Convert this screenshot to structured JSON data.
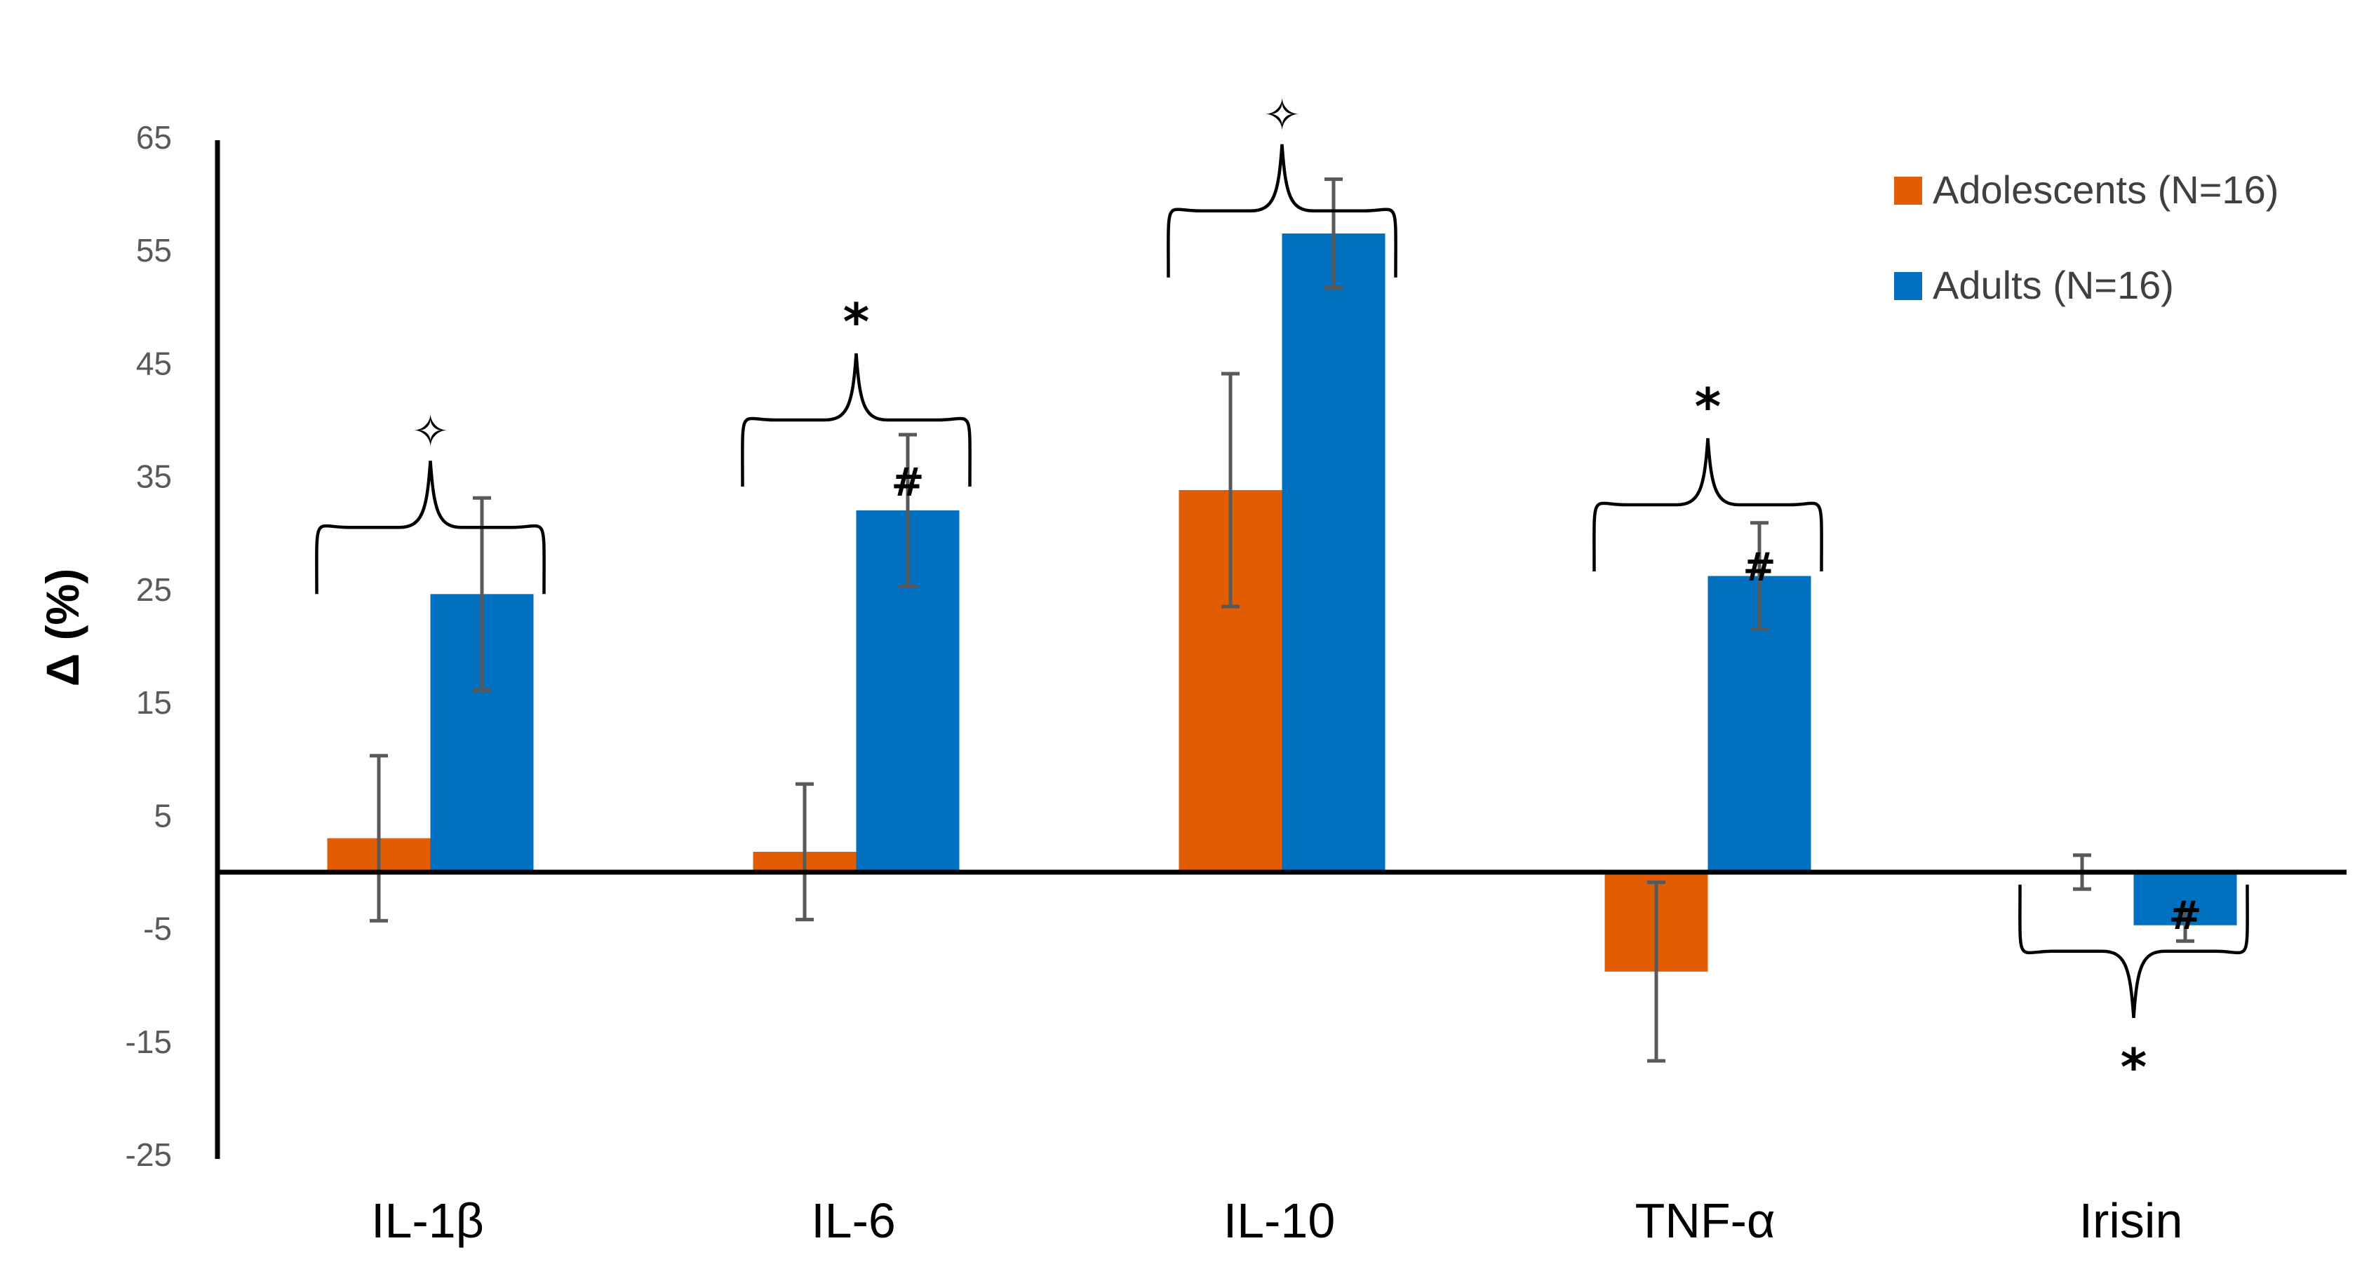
{
  "chart_data": {
    "type": "bar",
    "title": "",
    "xlabel": "",
    "ylabel": "Δ (%)",
    "ylim": [
      -25,
      65
    ],
    "yticks": [
      65,
      55,
      45,
      35,
      25,
      15,
      5,
      -5,
      -15,
      -25
    ],
    "categories": [
      "IL-1β",
      "IL-6",
      "IL-10",
      "TNF-α",
      "Irisin"
    ],
    "series": [
      {
        "name": "Adolescents (N=16)",
        "color": "#E15C02",
        "values": [
          3.0,
          1.8,
          33.8,
          -8.8,
          0
        ],
        "error": [
          7.3,
          6.0,
          10.3,
          7.9,
          1.5
        ]
      },
      {
        "name": "Adults (N=16)",
        "color": "#0170C1",
        "values": [
          24.6,
          32.0,
          56.5,
          26.2,
          -4.7
        ],
        "error": [
          8.5,
          6.7,
          4.8,
          4.7,
          1.4
        ]
      }
    ],
    "annotations": [
      {
        "category": 0,
        "symbol": "✧",
        "bracket": "above",
        "group_value": 30.5,
        "hash": ""
      },
      {
        "category": 1,
        "symbol": "*",
        "bracket": "above",
        "group_value": 40.0,
        "hash": "#"
      },
      {
        "category": 2,
        "symbol": "✧",
        "bracket": "above",
        "group_value": 58.5,
        "hash": ""
      },
      {
        "category": 3,
        "symbol": "*",
        "bracket": "above",
        "group_value": 32.5,
        "hash": "#"
      },
      {
        "category": 4,
        "symbol": "*",
        "bracket": "below",
        "group_value": -7.0,
        "hash": "#"
      }
    ],
    "legend_position": "top-right"
  }
}
